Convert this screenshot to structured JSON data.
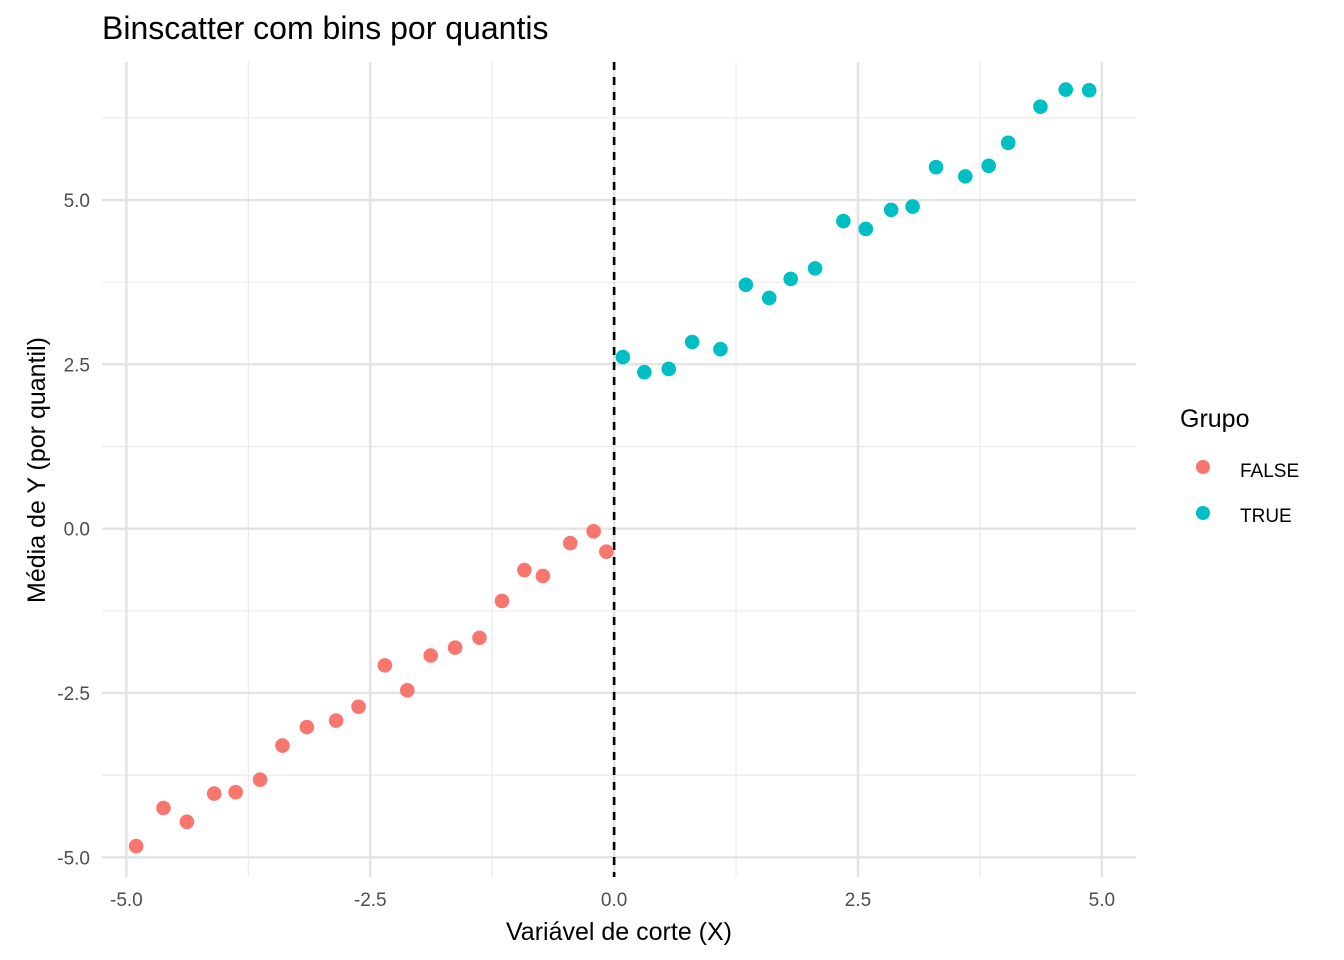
{
  "chart_data": {
    "type": "scatter",
    "title": "Binscatter com bins por quantis",
    "xlabel": "Variável de corte (X)",
    "ylabel": "Média de Y (por quantil)",
    "xlim": [
      -5.25,
      5.35
    ],
    "ylim": [
      -5.3,
      7.1
    ],
    "x_ticks": [
      -5.0,
      -2.5,
      0.0,
      2.5,
      5.0
    ],
    "x_tick_labels": [
      "-5.0",
      "-2.5",
      "0.0",
      "2.5",
      "5.0"
    ],
    "y_ticks": [
      -5.0,
      -2.5,
      0.0,
      2.5,
      5.0
    ],
    "y_tick_labels": [
      "-5.0",
      "-2.5",
      "0.0",
      "2.5",
      "5.0"
    ],
    "grid": true,
    "cutoff_line": {
      "x": 0.0,
      "style": "dashed",
      "color": "#000000"
    },
    "legend": {
      "title": "Grupo",
      "placement": "right"
    },
    "series": [
      {
        "name": "FALSE",
        "color": "#F8766D",
        "points": [
          {
            "x": -4.9,
            "y": -4.83
          },
          {
            "x": -4.62,
            "y": -4.25
          },
          {
            "x": -4.38,
            "y": -4.46
          },
          {
            "x": -4.1,
            "y": -4.03
          },
          {
            "x": -3.88,
            "y": -4.01
          },
          {
            "x": -3.63,
            "y": -3.82
          },
          {
            "x": -3.4,
            "y": -3.3
          },
          {
            "x": -3.15,
            "y": -3.02
          },
          {
            "x": -2.85,
            "y": -2.92
          },
          {
            "x": -2.62,
            "y": -2.71
          },
          {
            "x": -2.35,
            "y": -2.08
          },
          {
            "x": -2.12,
            "y": -2.46
          },
          {
            "x": -1.88,
            "y": -1.93
          },
          {
            "x": -1.63,
            "y": -1.81
          },
          {
            "x": -1.38,
            "y": -1.66
          },
          {
            "x": -1.15,
            "y": -1.1
          },
          {
            "x": -0.92,
            "y": -0.63
          },
          {
            "x": -0.73,
            "y": -0.72
          },
          {
            "x": -0.45,
            "y": -0.22
          },
          {
            "x": -0.21,
            "y": -0.04
          },
          {
            "x": -0.08,
            "y": -0.35
          }
        ]
      },
      {
        "name": "TRUE",
        "color": "#00BFC4",
        "points": [
          {
            "x": 0.09,
            "y": 2.61
          },
          {
            "x": 0.31,
            "y": 2.38
          },
          {
            "x": 0.56,
            "y": 2.43
          },
          {
            "x": 0.8,
            "y": 2.84
          },
          {
            "x": 1.09,
            "y": 2.73
          },
          {
            "x": 1.35,
            "y": 3.71
          },
          {
            "x": 1.59,
            "y": 3.51
          },
          {
            "x": 1.81,
            "y": 3.8
          },
          {
            "x": 2.06,
            "y": 3.96
          },
          {
            "x": 2.35,
            "y": 4.68
          },
          {
            "x": 2.58,
            "y": 4.56
          },
          {
            "x": 2.84,
            "y": 4.85
          },
          {
            "x": 3.06,
            "y": 4.9
          },
          {
            "x": 3.3,
            "y": 5.5
          },
          {
            "x": 3.6,
            "y": 5.36
          },
          {
            "x": 3.84,
            "y": 5.52
          },
          {
            "x": 4.04,
            "y": 5.87
          },
          {
            "x": 4.37,
            "y": 6.42
          },
          {
            "x": 4.63,
            "y": 6.68
          },
          {
            "x": 4.87,
            "y": 6.67
          }
        ]
      }
    ]
  }
}
